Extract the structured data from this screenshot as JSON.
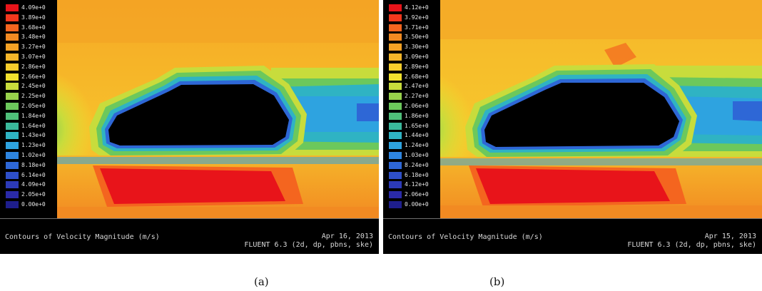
{
  "panels": [
    {
      "id": "a",
      "caption": "(a)",
      "footer": {
        "title": "Contours of Velocity Magnitude (m/s)",
        "date": "Apr 16, 2013",
        "solver": "FLUENT 6.3 (2d, dp, pbns, ske)"
      },
      "legend": {
        "labels": [
          "4.09e+0",
          "3.89e+0",
          "3.68e+0",
          "3.48e+0",
          "3.27e+0",
          "3.07e+0",
          "2.86e+0",
          "2.66e+0",
          "2.45e+0",
          "2.25e+0",
          "2.05e+0",
          "1.84e+0",
          "1.64e+0",
          "1.43e+0",
          "1.23e+0",
          "1.02e+0",
          "8.18e+0",
          "6.14e+0",
          "4.09e+0",
          "2.05e+0",
          "0.00e+0"
        ]
      }
    },
    {
      "id": "b",
      "caption": "(b)",
      "footer": {
        "title": "Contours of Velocity Magnitude (m/s)",
        "date": "Apr 15, 2013",
        "solver": "FLUENT 6.3 (2d, dp, pbns, ske)"
      },
      "legend": {
        "labels": [
          "4.12e+0",
          "3.92e+0",
          "3.71e+0",
          "3.50e+0",
          "3.30e+0",
          "3.09e+0",
          "2.89e+0",
          "2.68e+0",
          "2.47e+0",
          "2.27e+0",
          "2.06e+0",
          "1.86e+0",
          "1.65e+0",
          "1.44e+0",
          "1.24e+0",
          "1.03e+0",
          "8.24e+0",
          "6.18e+0",
          "4.12e+0",
          "2.06e+0",
          "0.00e+0"
        ]
      }
    }
  ],
  "colormap": [
    "#e8141a",
    "#f2381d",
    "#f4651f",
    "#f28a22",
    "#f4a225",
    "#f5b62a",
    "#f7cd2c",
    "#f2e12e",
    "#c8dc3c",
    "#98d24c",
    "#6cc85c",
    "#4fbf7a",
    "#3ab99c",
    "#2fb3c3",
    "#2ea3e0",
    "#2e85e0",
    "#2e67d6",
    "#2e4fc8",
    "#2c3ab8",
    "#2a2aa8",
    "#1e1e8c"
  ]
}
